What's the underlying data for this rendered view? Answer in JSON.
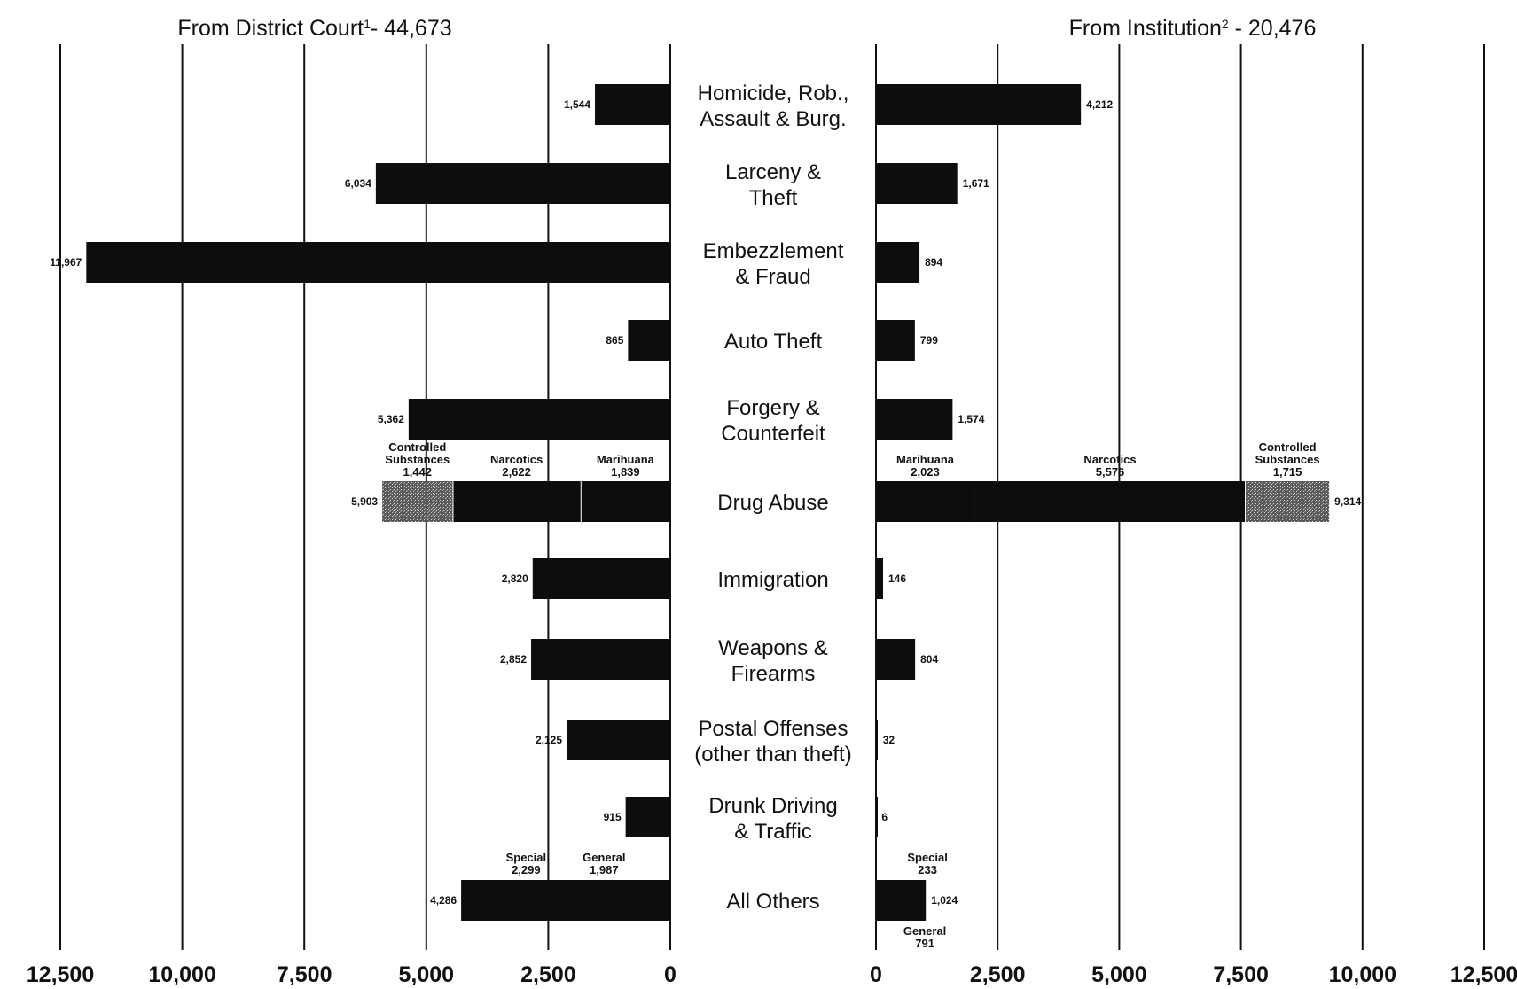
{
  "colors": {
    "bar": "#0d0d0d",
    "stipple": "#6e6e6e",
    "grid": "#111111"
  },
  "chart_data": [
    {
      "type": "bar",
      "orientation": "horizontal",
      "direction": "right-to-left",
      "title_main": "From District Court",
      "title_sup": "1",
      "title_tail": "- 44,673",
      "xlim": [
        0,
        12500
      ],
      "xticks": [
        "0",
        "2,500",
        "5,000",
        "7,500",
        "10,000",
        "12,500"
      ],
      "grid": true,
      "categories": [
        "Homicide, Rob.,|Assault & Burg.",
        "Larceny &|Theft",
        "Embezzlement|& Fraud",
        "Auto Theft",
        "Forgery &|Counterfeit",
        "Drug Abuse",
        "Immigration",
        "Weapons &|Firearms",
        "Postal Offenses|(other than theft)",
        "Drunk Driving|& Traffic",
        "All Others"
      ],
      "values": [
        1544,
        6034,
        11967,
        865,
        5362,
        5903,
        2820,
        2852,
        2125,
        915,
        4286
      ],
      "value_labels": [
        "1,544",
        "6,034",
        "11,967",
        "865",
        "5,362",
        "5,903",
        "2,820",
        "2,852",
        "2,125",
        "915",
        "4,286"
      ],
      "breakdowns": {
        "Drug Abuse": [
          {
            "name": "Marihuana",
            "value": 1839,
            "label": "1,839",
            "stipple": false
          },
          {
            "name": "Narcotics",
            "value": 2622,
            "label": "2,622",
            "stipple": false
          },
          {
            "name": "Controlled|Substances",
            "value": 1442,
            "label": "1,442",
            "stipple": true
          }
        ],
        "All Others": [
          {
            "name": "General",
            "value": 1987,
            "label": "1,987",
            "stipple": false
          },
          {
            "name": "Special",
            "value": 2299,
            "label": "2,299",
            "stipple": false
          }
        ]
      }
    },
    {
      "type": "bar",
      "orientation": "horizontal",
      "direction": "left-to-right",
      "title_main": "From Institution",
      "title_sup": "2",
      "title_tail": " - 20,476",
      "xlim": [
        0,
        12500
      ],
      "xticks": [
        "0",
        "2,500",
        "5,000",
        "7,500",
        "10,000",
        "12,500"
      ],
      "grid": true,
      "values": [
        4212,
        1671,
        894,
        799,
        1574,
        9314,
        146,
        804,
        32,
        6,
        1024
      ],
      "value_labels": [
        "4,212",
        "1,671",
        "894",
        "799",
        "1,574",
        "9,314",
        "146",
        "804",
        "32",
        "6",
        "1,024"
      ],
      "breakdowns": {
        "Drug Abuse": [
          {
            "name": "Marihuana",
            "value": 2023,
            "label": "2,023",
            "stipple": false
          },
          {
            "name": "Narcotics",
            "value": 5576,
            "label": "5,576",
            "stipple": false
          },
          {
            "name": "Controlled|Substances",
            "value": 1715,
            "label": "1,715",
            "stipple": true
          }
        ],
        "All Others": [
          {
            "name": "General",
            "value": 791,
            "label": "791",
            "stipple": false
          },
          {
            "name": "Special",
            "value": 233,
            "label": "233",
            "stipple": false
          }
        ]
      }
    }
  ]
}
